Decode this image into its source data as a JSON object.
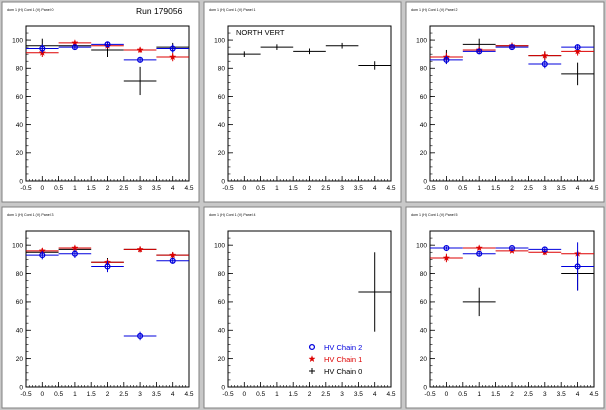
{
  "run_label": "Run 179056",
  "colors": {
    "chain2": "#0000dd",
    "chain1": "#dd0000",
    "chain0": "#000000",
    "pad_bg": "#ffffff",
    "canvas_bg": "#c8c8c8"
  },
  "legend": {
    "placement": "bottom-center of pad 5",
    "entries": [
      {
        "key": "chain2",
        "label": "HV Chain 2",
        "marker": "circle"
      },
      {
        "key": "chain1",
        "label": "HV Chain 1",
        "marker": "star"
      },
      {
        "key": "chain0",
        "label": "HV Chain 0",
        "marker": "plus"
      }
    ]
  },
  "chart_data": [
    {
      "type": "scatter",
      "pad_title": "dom 1 (H) Cont 1 (V) Panel 0",
      "annotation": "",
      "xlim": [
        -0.5,
        4.5
      ],
      "ylim": [
        0,
        110
      ],
      "xticks": [
        "-0.5",
        "0",
        "0.5",
        "1",
        "1.5",
        "2",
        "2.5",
        "3",
        "3.5",
        "4",
        "4.5"
      ],
      "yticks": [
        "0",
        "20",
        "40",
        "60",
        "80",
        "100"
      ],
      "series": [
        {
          "key": "chain0",
          "points": [
            {
              "x": 0,
              "y": 96,
              "ex": 0.5,
              "ey": 5
            },
            {
              "x": 1,
              "y": 96,
              "ex": 0.5,
              "ey": 2
            },
            {
              "x": 2,
              "y": 93,
              "ex": 0.5,
              "ey": 5
            },
            {
              "x": 3,
              "y": 71,
              "ex": 0.5,
              "ey": 10
            },
            {
              "x": 4,
              "y": 95,
              "ex": 0.5,
              "ey": 3
            }
          ]
        },
        {
          "key": "chain1",
          "points": [
            {
              "x": 0,
              "y": 91,
              "ex": 0.5,
              "ey": 3
            },
            {
              "x": 1,
              "y": 98,
              "ex": 0.5,
              "ey": 1
            },
            {
              "x": 2,
              "y": 96,
              "ex": 0.5,
              "ey": 2
            },
            {
              "x": 3,
              "y": 93,
              "ex": 0.5,
              "ey": 2
            },
            {
              "x": 4,
              "y": 88,
              "ex": 0.5,
              "ey": 3
            }
          ]
        },
        {
          "key": "chain2",
          "points": [
            {
              "x": 0,
              "y": 94,
              "ex": 0.5,
              "ey": 3
            },
            {
              "x": 1,
              "y": 95,
              "ex": 0.5,
              "ey": 2
            },
            {
              "x": 2,
              "y": 97,
              "ex": 0.5,
              "ey": 2
            },
            {
              "x": 3,
              "y": 86,
              "ex": 0.5,
              "ey": 2
            },
            {
              "x": 4,
              "y": 94,
              "ex": 0.5,
              "ey": 3
            }
          ]
        }
      ]
    },
    {
      "type": "scatter",
      "pad_title": "dom 1 (H) Cont 1 (V) Panel 1",
      "annotation": "NORTH VERT",
      "xlim": [
        -0.5,
        4.5
      ],
      "ylim": [
        0,
        110
      ],
      "xticks": [
        "-0.5",
        "0",
        "0.5",
        "1",
        "1.5",
        "2",
        "2.5",
        "3",
        "3.5",
        "4",
        "4.5"
      ],
      "yticks": [
        "0",
        "20",
        "40",
        "60",
        "80",
        "100"
      ],
      "series": [
        {
          "key": "chain0",
          "points": [
            {
              "x": 0,
              "y": 90,
              "ex": 0.5,
              "ey": 2
            },
            {
              "x": 1,
              "y": 95,
              "ex": 0.5,
              "ey": 2
            },
            {
              "x": 2,
              "y": 92,
              "ex": 0.5,
              "ey": 2
            },
            {
              "x": 3,
              "y": 96,
              "ex": 0.5,
              "ey": 2
            },
            {
              "x": 4,
              "y": 82,
              "ex": 0.5,
              "ey": 3
            }
          ]
        }
      ]
    },
    {
      "type": "scatter",
      "pad_title": "dom 1 (H) Cont 1 (V) Panel 2",
      "annotation": "",
      "xlim": [
        -0.5,
        4.5
      ],
      "ylim": [
        0,
        110
      ],
      "xticks": [
        "-0.5",
        "0",
        "0.5",
        "1",
        "1.5",
        "2",
        "2.5",
        "3",
        "3.5",
        "4",
        "4.5"
      ],
      "yticks": [
        "0",
        "20",
        "40",
        "60",
        "80",
        "100"
      ],
      "series": [
        {
          "key": "chain0",
          "points": [
            {
              "x": 0,
              "y": 88,
              "ex": 0.5,
              "ey": 5
            },
            {
              "x": 1,
              "y": 97,
              "ex": 0.5,
              "ey": 4
            },
            {
              "x": 2,
              "y": 96,
              "ex": 0.5,
              "ey": 2
            },
            {
              "x": 3,
              "y": 89,
              "ex": 0.5,
              "ey": 3
            },
            {
              "x": 4,
              "y": 76,
              "ex": 0.5,
              "ey": 8
            }
          ]
        },
        {
          "key": "chain1",
          "points": [
            {
              "x": 0,
              "y": 88,
              "ex": 0.5,
              "ey": 3
            },
            {
              "x": 1,
              "y": 93,
              "ex": 0.5,
              "ey": 2
            },
            {
              "x": 2,
              "y": 96,
              "ex": 0.5,
              "ey": 2
            },
            {
              "x": 3,
              "y": 89,
              "ex": 0.5,
              "ey": 3
            },
            {
              "x": 4,
              "y": 92,
              "ex": 0.5,
              "ey": 3
            }
          ]
        },
        {
          "key": "chain2",
          "points": [
            {
              "x": 0,
              "y": 86,
              "ex": 0.5,
              "ey": 3
            },
            {
              "x": 1,
              "y": 92,
              "ex": 0.5,
              "ey": 2
            },
            {
              "x": 2,
              "y": 95,
              "ex": 0.5,
              "ey": 2
            },
            {
              "x": 3,
              "y": 83,
              "ex": 0.5,
              "ey": 3
            },
            {
              "x": 4,
              "y": 95,
              "ex": 0.5,
              "ey": 2
            }
          ]
        }
      ]
    },
    {
      "type": "scatter",
      "pad_title": "dom 1 (H) Cont 1 (V) Panel 3",
      "annotation": "",
      "xlim": [
        -0.5,
        4.5
      ],
      "ylim": [
        0,
        110
      ],
      "xticks": [
        "-0.5",
        "0",
        "0.5",
        "1",
        "1.5",
        "2",
        "2.5",
        "3",
        "3.5",
        "4",
        "4.5"
      ],
      "yticks": [
        "0",
        "20",
        "40",
        "60",
        "80",
        "100"
      ],
      "series": [
        {
          "key": "chain0",
          "points": [
            {
              "x": 0,
              "y": 95,
              "ex": 0.5,
              "ey": 2
            },
            {
              "x": 1,
              "y": 97,
              "ex": 0.5,
              "ey": 2
            },
            {
              "x": 2,
              "y": 88,
              "ex": 0.5,
              "ey": 3
            },
            {
              "x": 3,
              "y": 97,
              "ex": 0.5,
              "ey": 2
            },
            {
              "x": 4,
              "y": 93,
              "ex": 0.5,
              "ey": 2
            }
          ]
        },
        {
          "key": "chain1",
          "points": [
            {
              "x": 0,
              "y": 96,
              "ex": 0.5,
              "ey": 2
            },
            {
              "x": 1,
              "y": 98,
              "ex": 0.5,
              "ey": 1
            },
            {
              "x": 2,
              "y": 88,
              "ex": 0.5,
              "ey": 2
            },
            {
              "x": 3,
              "y": 97,
              "ex": 0.5,
              "ey": 2
            },
            {
              "x": 4,
              "y": 93,
              "ex": 0.5,
              "ey": 2
            }
          ]
        },
        {
          "key": "chain2",
          "points": [
            {
              "x": 0,
              "y": 93,
              "ex": 0.5,
              "ey": 3
            },
            {
              "x": 1,
              "y": 94,
              "ex": 0.5,
              "ey": 3
            },
            {
              "x": 2,
              "y": 85,
              "ex": 0.5,
              "ey": 4
            },
            {
              "x": 3,
              "y": 36,
              "ex": 0.5,
              "ey": 3
            },
            {
              "x": 4,
              "y": 89,
              "ex": 0.5,
              "ey": 2
            }
          ]
        }
      ]
    },
    {
      "type": "scatter",
      "pad_title": "dom 1 (H) Cont 1 (V) Panel 4",
      "annotation": "",
      "xlim": [
        -0.5,
        4.5
      ],
      "ylim": [
        0,
        110
      ],
      "xticks": [
        "-0.5",
        "0",
        "0.5",
        "1",
        "1.5",
        "2",
        "2.5",
        "3",
        "3.5",
        "4",
        "4.5"
      ],
      "yticks": [
        "0",
        "20",
        "40",
        "60",
        "80",
        "100"
      ],
      "series": [
        {
          "key": "chain0",
          "points": [
            {
              "x": 4,
              "y": 67,
              "ex": 0.5,
              "ey": 28
            }
          ]
        }
      ]
    },
    {
      "type": "scatter",
      "pad_title": "dom 1 (H) Cont 1 (V) Panel 5",
      "annotation": "",
      "xlim": [
        -0.5,
        4.5
      ],
      "ylim": [
        0,
        110
      ],
      "xticks": [
        "-0.5",
        "0",
        "0.5",
        "1",
        "1.5",
        "2",
        "2.5",
        "3",
        "3.5",
        "4",
        "4.5"
      ],
      "yticks": [
        "0",
        "20",
        "40",
        "60",
        "80",
        "100"
      ],
      "series": [
        {
          "key": "chain0",
          "points": [
            {
              "x": 1,
              "y": 60,
              "ex": 0.5,
              "ey": 10
            },
            {
              "x": 4,
              "y": 80,
              "ex": 0.5,
              "ey": 12
            }
          ]
        },
        {
          "key": "chain1",
          "points": [
            {
              "x": 0,
              "y": 91,
              "ex": 0.5,
              "ey": 3
            },
            {
              "x": 1,
              "y": 98,
              "ex": 0.5,
              "ey": 1
            },
            {
              "x": 2,
              "y": 96,
              "ex": 0.5,
              "ey": 1
            },
            {
              "x": 3,
              "y": 95,
              "ex": 0.5,
              "ey": 2
            },
            {
              "x": 4,
              "y": 94,
              "ex": 0.5,
              "ey": 2
            }
          ]
        },
        {
          "key": "chain2",
          "points": [
            {
              "x": 0,
              "y": 98,
              "ex": 0.5,
              "ey": 1
            },
            {
              "x": 1,
              "y": 94,
              "ex": 0.5,
              "ey": 2
            },
            {
              "x": 2,
              "y": 98,
              "ex": 0.5,
              "ey": 1
            },
            {
              "x": 3,
              "y": 97,
              "ex": 0.5,
              "ey": 2
            },
            {
              "x": 4,
              "y": 85,
              "ex": 0.5,
              "ey": 17
            }
          ]
        }
      ]
    }
  ]
}
